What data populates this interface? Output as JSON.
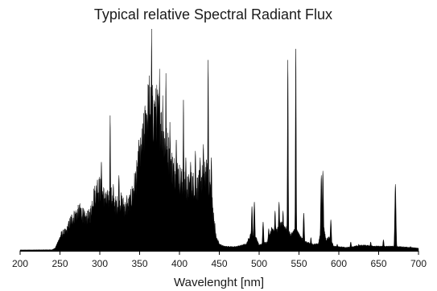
{
  "chart_data": {
    "type": "area",
    "title": "Typical relative Spectral Radiant Flux",
    "xlabel": "Wavelenght [nm]",
    "ylabel": "",
    "xlim": [
      200,
      700
    ],
    "ylim": [
      0,
      1
    ],
    "x_ticks": [
      200,
      250,
      300,
      350,
      400,
      450,
      500,
      550,
      600,
      650,
      700
    ],
    "y_axis_visible": false,
    "grid": false,
    "legend": "none",
    "fill_color": "#000000",
    "baseline": [
      [
        200,
        0.004
      ],
      [
        240,
        0.005
      ],
      [
        244,
        0.012
      ],
      [
        248,
        0.045
      ],
      [
        252,
        0.075
      ],
      [
        258,
        0.085
      ],
      [
        264,
        0.14
      ],
      [
        270,
        0.16
      ],
      [
        276,
        0.18
      ],
      [
        282,
        0.14
      ],
      [
        288,
        0.16
      ],
      [
        292,
        0.24
      ],
      [
        300,
        0.28
      ],
      [
        308,
        0.22
      ],
      [
        314,
        0.24
      ],
      [
        320,
        0.2
      ],
      [
        326,
        0.22
      ],
      [
        334,
        0.18
      ],
      [
        340,
        0.24
      ],
      [
        346,
        0.33
      ],
      [
        352,
        0.44
      ],
      [
        358,
        0.58
      ],
      [
        362,
        0.66
      ],
      [
        368,
        0.6
      ],
      [
        372,
        0.62
      ],
      [
        376,
        0.56
      ],
      [
        380,
        0.5
      ],
      [
        386,
        0.44
      ],
      [
        392,
        0.36
      ],
      [
        398,
        0.34
      ],
      [
        404,
        0.3
      ],
      [
        410,
        0.28
      ],
      [
        416,
        0.3
      ],
      [
        422,
        0.28
      ],
      [
        428,
        0.32
      ],
      [
        434,
        0.34
      ],
      [
        438,
        0.3
      ],
      [
        442,
        0.18
      ],
      [
        446,
        0.06
      ],
      [
        450,
        0.03
      ],
      [
        456,
        0.02
      ],
      [
        470,
        0.018
      ],
      [
        484,
        0.03
      ],
      [
        490,
        0.08
      ],
      [
        496,
        0.06
      ],
      [
        500,
        0.025
      ],
      [
        510,
        0.04
      ],
      [
        516,
        0.1
      ],
      [
        522,
        0.09
      ],
      [
        528,
        0.12
      ],
      [
        534,
        0.1
      ],
      [
        540,
        0.07
      ],
      [
        546,
        0.1
      ],
      [
        552,
        0.06
      ],
      [
        558,
        0.04
      ],
      [
        566,
        0.03
      ],
      [
        574,
        0.03
      ],
      [
        580,
        0.12
      ],
      [
        584,
        0.05
      ],
      [
        588,
        0.06
      ],
      [
        594,
        0.02
      ],
      [
        610,
        0.015
      ],
      [
        630,
        0.025
      ],
      [
        650,
        0.02
      ],
      [
        670,
        0.02
      ],
      [
        690,
        0.015
      ],
      [
        700,
        0.012
      ]
    ],
    "peaks": [
      [
        271,
        0.12
      ],
      [
        277,
        0.1
      ],
      [
        289,
        0.08
      ],
      [
        297,
        0.32
      ],
      [
        302,
        0.4
      ],
      [
        305,
        0.28
      ],
      [
        313,
        0.61
      ],
      [
        317,
        0.3
      ],
      [
        324,
        0.34
      ],
      [
        334,
        0.25
      ],
      [
        339,
        0.22
      ],
      [
        349,
        0.5
      ],
      [
        352,
        0.45
      ],
      [
        358,
        0.62
      ],
      [
        365,
        1.0
      ],
      [
        370,
        0.7
      ],
      [
        375,
        0.82
      ],
      [
        379,
        0.7
      ],
      [
        383,
        0.8
      ],
      [
        388,
        0.58
      ],
      [
        396,
        0.5
      ],
      [
        405,
        0.68
      ],
      [
        408,
        0.42
      ],
      [
        414,
        0.4
      ],
      [
        420,
        0.45
      ],
      [
        426,
        0.42
      ],
      [
        430,
        0.48
      ],
      [
        436,
        0.86
      ],
      [
        440,
        0.42
      ],
      [
        491,
        0.2
      ],
      [
        494,
        0.22
      ],
      [
        505,
        0.13
      ],
      [
        512,
        0.1
      ],
      [
        520,
        0.18
      ],
      [
        525,
        0.22
      ],
      [
        530,
        0.18
      ],
      [
        536,
        0.86
      ],
      [
        546,
        0.91
      ],
      [
        556,
        0.17
      ],
      [
        565,
        0.06
      ],
      [
        578,
        0.34
      ],
      [
        580,
        0.36
      ],
      [
        590,
        0.14
      ],
      [
        598,
        0.03
      ],
      [
        615,
        0.04
      ],
      [
        625,
        0.03
      ],
      [
        640,
        0.04
      ],
      [
        656,
        0.05
      ],
      [
        671,
        0.3
      ],
      [
        690,
        0.02
      ]
    ]
  }
}
